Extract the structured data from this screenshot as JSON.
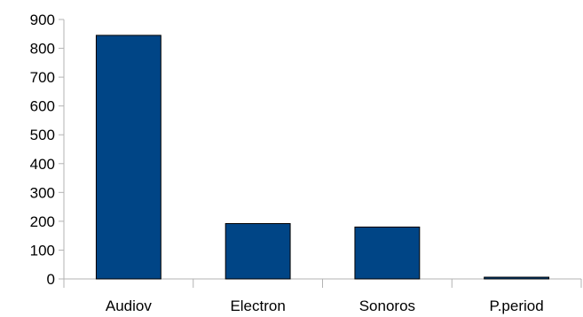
{
  "chart_data": {
    "type": "bar",
    "categories": [
      "Audiov",
      "Electron",
      "Sonoros",
      "P.period"
    ],
    "values": [
      845,
      192,
      180,
      6
    ],
    "ylim": [
      0,
      900
    ],
    "y_ticks": [
      0,
      100,
      200,
      300,
      400,
      500,
      600,
      700,
      800,
      900
    ],
    "grid": false,
    "legend": "none",
    "bar_color": "#004586",
    "bar_outline": "#000000",
    "axis_color": "#b3b3b3"
  }
}
